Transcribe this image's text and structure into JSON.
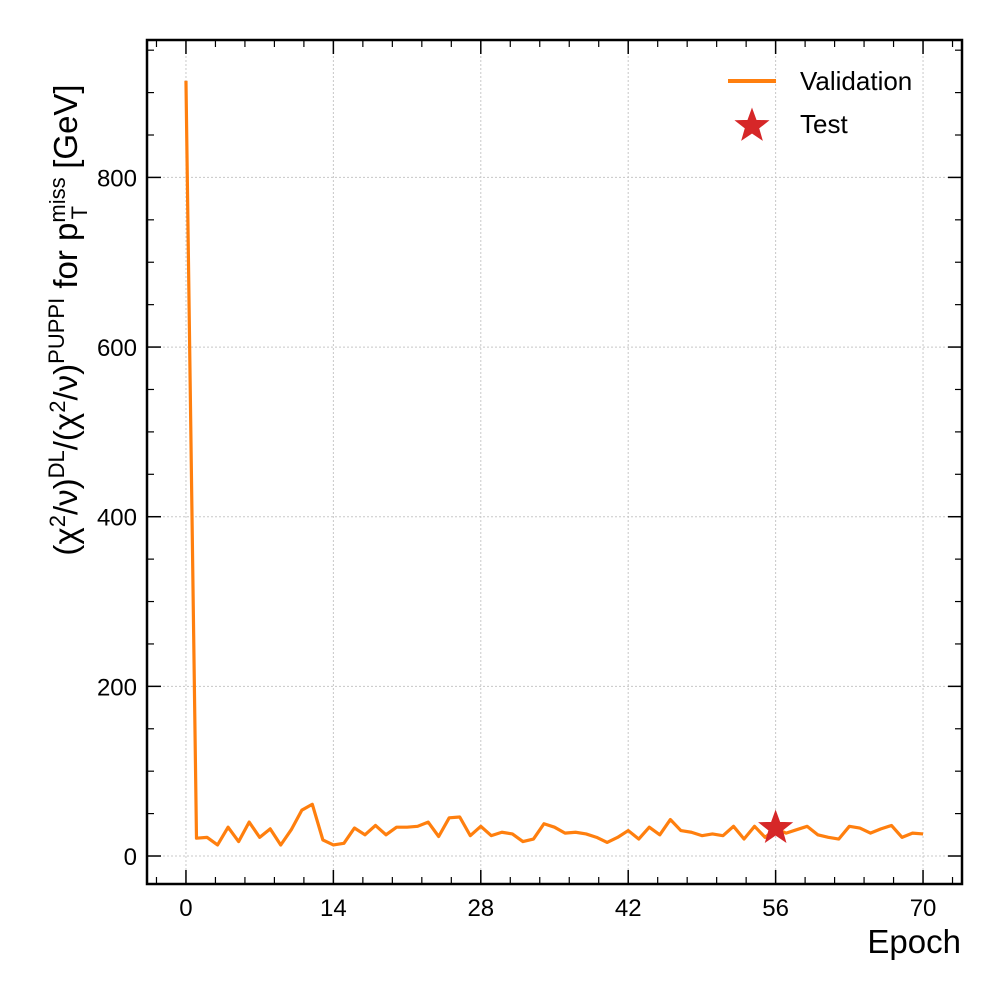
{
  "chart_data": {
    "type": "line",
    "xlabel": "Epoch",
    "ylabel": {
      "prefix": "(χ",
      "sq1": "2",
      "nu1": "/ν)",
      "dl": "DL",
      "mid": "/(χ",
      "sq2": "2",
      "nu2": "/ν)",
      "puppi": "PUPPI",
      "for": " for p",
      "miss": "miss",
      "T": "T",
      "unit": " [GeV]"
    },
    "xlim": [
      -3.7,
      73.7
    ],
    "ylim": [
      -33,
      962
    ],
    "xticks": [
      0,
      14,
      28,
      42,
      56,
      70
    ],
    "yticks": [
      0,
      200,
      400,
      600,
      800
    ],
    "grid": true,
    "legend_position": "top-right",
    "series": [
      {
        "name": "Validation",
        "color": "#ff7f0e",
        "marker": "line",
        "x": [
          0,
          1,
          2,
          3,
          4,
          5,
          6,
          7,
          8,
          9,
          10,
          11,
          12,
          13,
          14,
          15,
          16,
          17,
          18,
          19,
          20,
          21,
          22,
          23,
          24,
          25,
          26,
          27,
          28,
          29,
          30,
          31,
          32,
          33,
          34,
          35,
          36,
          37,
          38,
          39,
          40,
          41,
          42,
          43,
          44,
          45,
          46,
          47,
          48,
          49,
          50,
          51,
          52,
          53,
          54,
          55,
          56,
          57,
          58,
          59,
          60,
          61,
          62,
          63,
          64,
          65,
          66,
          67,
          68,
          69,
          70
        ],
        "y": [
          914,
          21,
          22,
          13,
          34,
          17,
          40,
          22,
          32,
          13,
          31,
          54,
          61,
          19,
          13,
          15,
          33,
          25,
          36,
          25,
          34,
          34,
          35,
          40,
          23,
          45,
          46,
          24,
          35,
          24,
          28,
          26,
          17,
          20,
          38,
          34,
          27,
          28,
          26,
          22,
          16,
          22,
          30,
          20,
          34,
          25,
          43,
          30,
          28,
          24,
          26,
          24,
          35,
          20,
          35,
          22,
          32,
          27,
          31,
          35,
          25,
          22,
          20,
          35,
          33,
          27,
          32,
          36,
          22,
          27,
          26
        ]
      },
      {
        "name": "Test",
        "color": "#d62728",
        "marker": "star",
        "x": [
          56
        ],
        "y": [
          33
        ]
      }
    ]
  }
}
